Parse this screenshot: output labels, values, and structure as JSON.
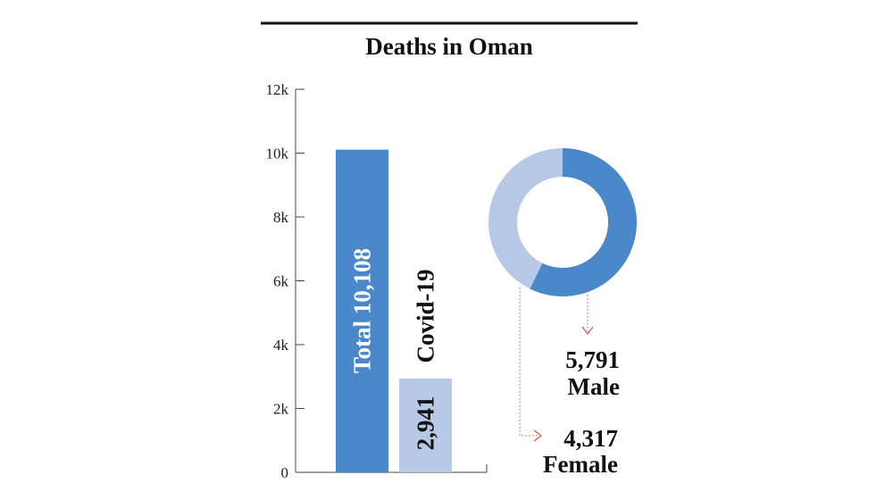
{
  "chart_data": [
    {
      "type": "bar",
      "title": "Deaths in Oman",
      "categories": [
        "Total",
        "Covid-19"
      ],
      "values": [
        10108,
        2941
      ],
      "bar_labels": [
        "Total 10,108",
        "Covid-19"
      ],
      "value_label_covid": "2,941",
      "ylim": [
        0,
        12000
      ],
      "y_ticks": [
        0,
        2000,
        4000,
        6000,
        8000,
        10000,
        12000
      ],
      "y_tick_labels": [
        "0",
        "2k",
        "4k",
        "6k",
        "8k",
        "10k",
        "12k"
      ],
      "colors": [
        "#4a88c9",
        "#b7c9e7"
      ]
    },
    {
      "type": "pie",
      "style": "donut",
      "slices": [
        {
          "label": "Male",
          "value": 5791,
          "value_label": "5,791",
          "color": "#4a88c9"
        },
        {
          "label": "Female",
          "value": 4317,
          "value_label": "4,317",
          "color": "#b7c9e7"
        }
      ],
      "leader_color": "#d9534f"
    }
  ]
}
